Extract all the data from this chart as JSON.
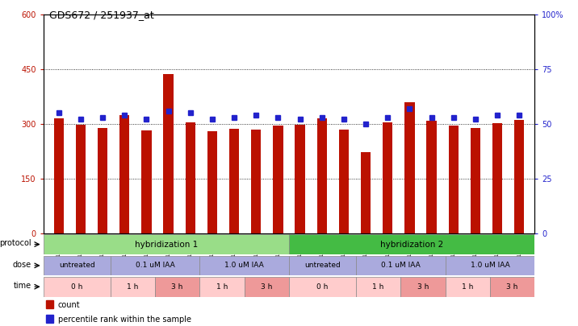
{
  "title": "GDS672 / 251937_at",
  "samples": [
    "GSM18228",
    "GSM18230",
    "GSM18232",
    "GSM18290",
    "GSM18292",
    "GSM18294",
    "GSM18296",
    "GSM18298",
    "GSM18300",
    "GSM18302",
    "GSM18304",
    "GSM18229",
    "GSM18231",
    "GSM18233",
    "GSM18291",
    "GSM18293",
    "GSM18295",
    "GSM18297",
    "GSM18299",
    "GSM18301",
    "GSM18303",
    "GSM18305"
  ],
  "counts": [
    315,
    298,
    288,
    323,
    283,
    437,
    305,
    280,
    287,
    285,
    295,
    298,
    315,
    285,
    222,
    305,
    360,
    308,
    295,
    288,
    303,
    310
  ],
  "percentile": [
    55,
    52,
    53,
    54,
    52,
    56,
    55,
    52,
    53,
    54,
    53,
    52,
    53,
    52,
    50,
    53,
    57,
    53,
    53,
    52,
    54,
    54
  ],
  "ylim_left": [
    0,
    600
  ],
  "ylim_right": [
    0,
    100
  ],
  "yticks_left": [
    0,
    150,
    300,
    450,
    600
  ],
  "yticks_right": [
    0,
    25,
    50,
    75,
    100
  ],
  "bar_color": "#bb1100",
  "dot_color": "#2222cc",
  "bg_color": "#ffffff",
  "protocol_labels": [
    "hybridization 1",
    "hybridization 2"
  ],
  "protocol_color1": "#99dd88",
  "protocol_color2": "#44bb44",
  "dose_labels": [
    "untreated",
    "0.1 uM IAA",
    "1.0 uM IAA",
    "untreated",
    "0.1 uM IAA",
    "1.0 uM IAA"
  ],
  "dose_color": "#aaaadd",
  "time_color_light": "#ffcccc",
  "time_color_dark": "#ee9999",
  "legend_count_color": "#bb1100",
  "legend_dot_color": "#2222cc"
}
